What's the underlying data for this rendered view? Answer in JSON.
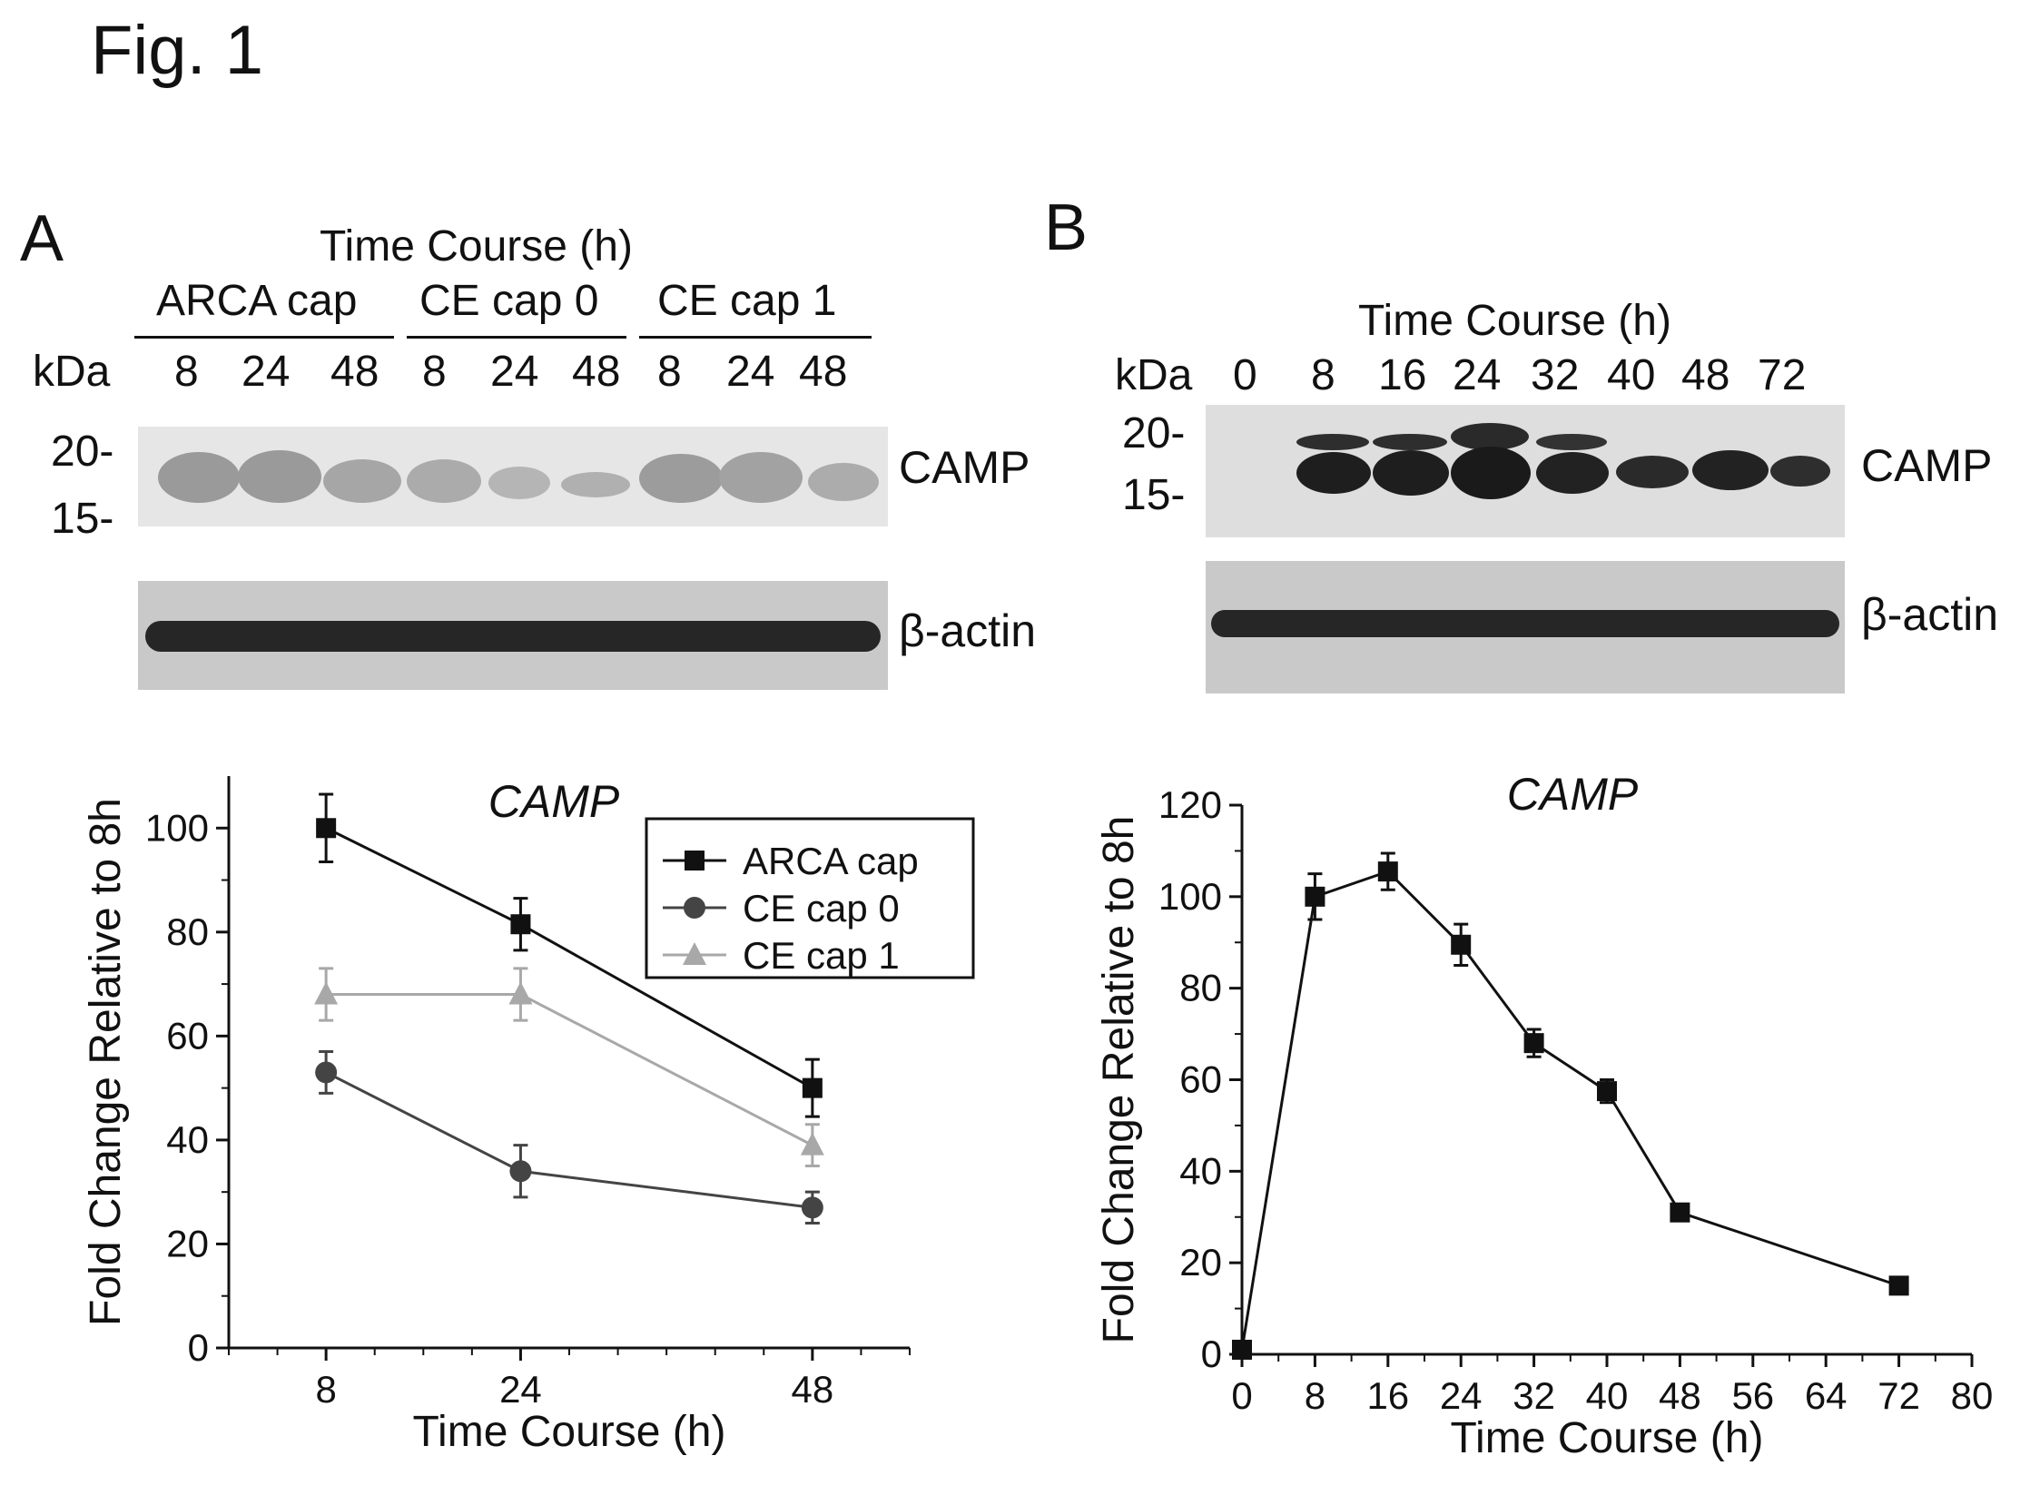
{
  "figure": {
    "title": "Fig. 1"
  },
  "panel_a": {
    "letter": "A",
    "blot": {
      "header": "Time Course (h)",
      "groups": [
        "ARCA cap",
        "CE cap 0",
        "CE cap 1"
      ],
      "kda_label": "kDa",
      "lanes": [
        "8",
        "24",
        "48",
        "8",
        "24",
        "48",
        "8",
        "24",
        "48"
      ],
      "markers": [
        "20-",
        "15-"
      ],
      "bands": [
        "CAMP",
        "β-actin"
      ]
    }
  },
  "panel_b": {
    "letter": "B",
    "blot": {
      "header": "Time Course (h)",
      "kda_label": "kDa",
      "lanes": [
        "0",
        "8",
        "16",
        "24",
        "32",
        "40",
        "48",
        "72"
      ],
      "markers": [
        "20-",
        "15-"
      ],
      "bands": [
        "CAMP",
        "β-actin"
      ]
    }
  },
  "chart_data": [
    {
      "type": "line",
      "panel": "A",
      "title": "CAMP",
      "xlabel": "Time Course (h)",
      "ylabel": "Fold Change Relative to 8h",
      "x": [
        8,
        24,
        48
      ],
      "xticks": [
        8,
        24,
        48
      ],
      "xlim": [
        0,
        56
      ],
      "ylim": [
        0,
        110
      ],
      "yticks": [
        0,
        20,
        40,
        60,
        80,
        100
      ],
      "legend_position": "top-right",
      "series": [
        {
          "name": "ARCA cap",
          "values": [
            100,
            81.5,
            50
          ],
          "errors": [
            6.5,
            5,
            5.5
          ],
          "marker": "square",
          "color": "#111111"
        },
        {
          "name": "CE cap 0",
          "values": [
            53,
            34,
            27
          ],
          "errors": [
            4,
            5,
            3
          ],
          "marker": "circle",
          "color": "#444444"
        },
        {
          "name": "CE cap 1",
          "values": [
            68,
            68,
            39
          ],
          "errors": [
            5,
            5,
            4
          ],
          "marker": "triangle",
          "color": "#a8a8a8"
        }
      ]
    },
    {
      "type": "line",
      "panel": "B",
      "title": "CAMP",
      "xlabel": "Time Course (h)",
      "ylabel": "Fold Change Relative to 8h",
      "x": [
        0,
        8,
        16,
        24,
        32,
        40,
        48,
        72
      ],
      "xticks": [
        0,
        8,
        16,
        24,
        32,
        40,
        48,
        56,
        64,
        72,
        80
      ],
      "xlim": [
        0,
        80
      ],
      "ylim": [
        0,
        120
      ],
      "yticks": [
        0,
        20,
        40,
        60,
        80,
        100,
        120
      ],
      "series": [
        {
          "name": "",
          "values": [
            1,
            100,
            105.5,
            89.5,
            68,
            57.5,
            31,
            15
          ],
          "errors": [
            0,
            5,
            4,
            4.5,
            3,
            2.5,
            1.5,
            1.5
          ],
          "marker": "square",
          "color": "#111111"
        }
      ]
    }
  ]
}
